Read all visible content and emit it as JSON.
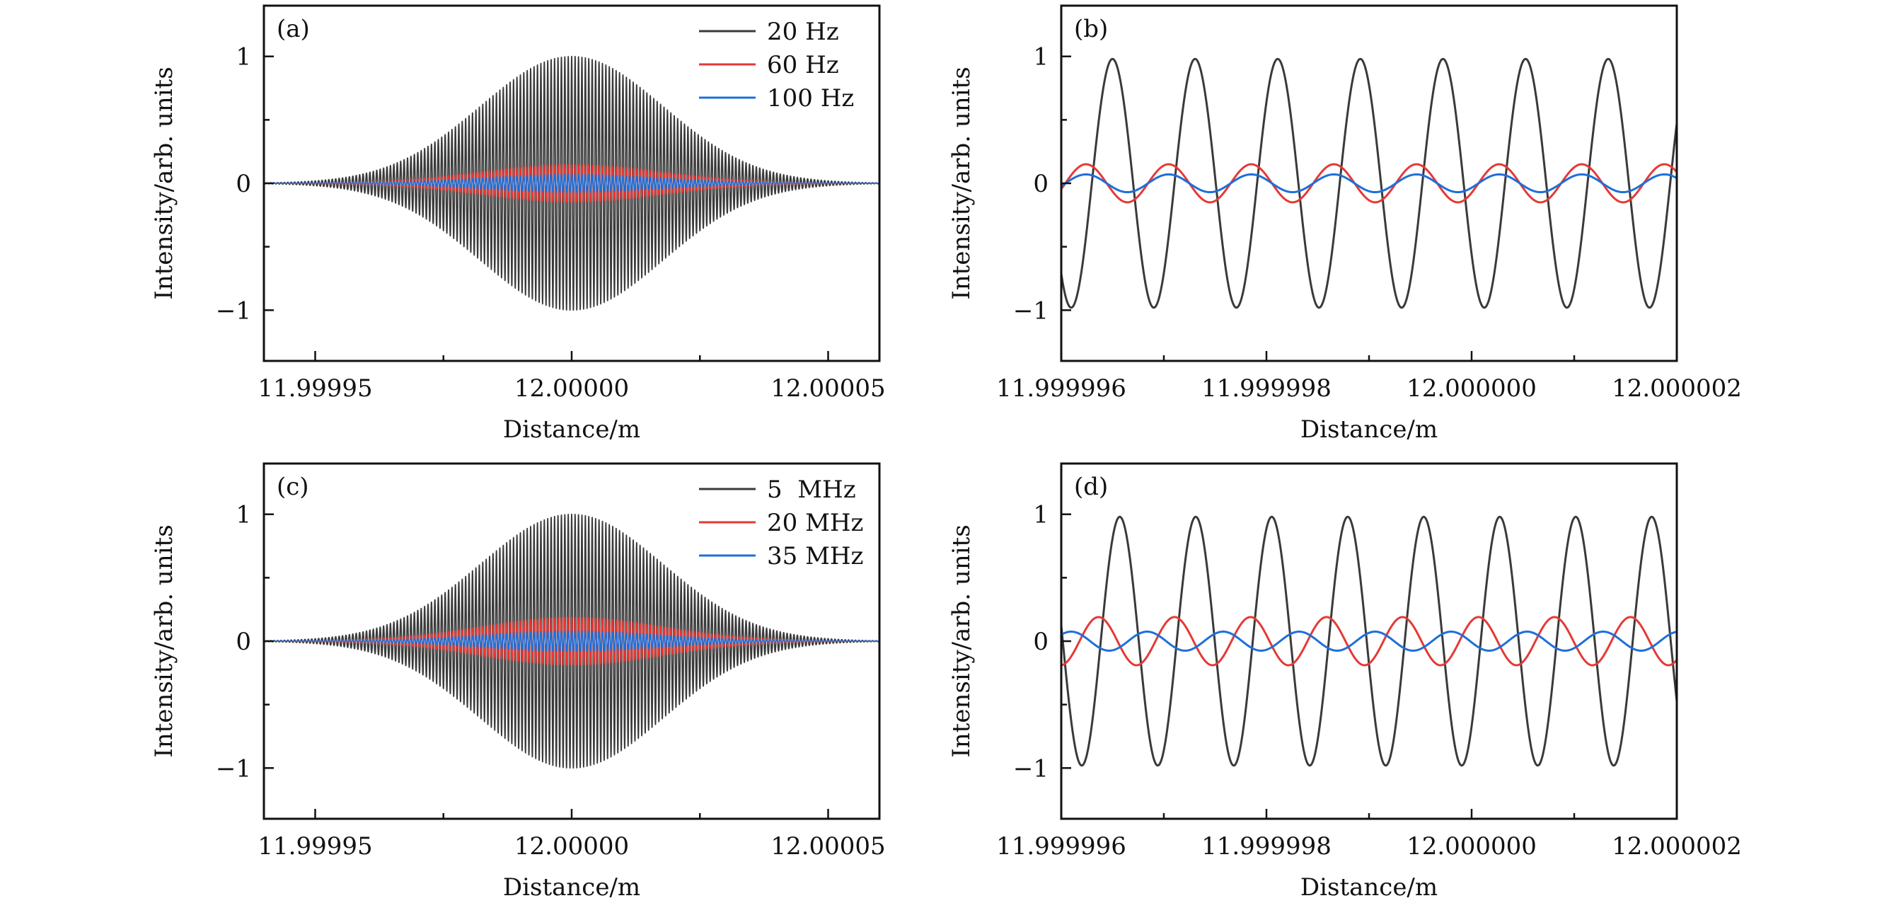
{
  "colors": {
    "s1": "#3a3a3a",
    "s2": "#e53935",
    "s3": "#1e6fd9",
    "axis": "#111111"
  },
  "chart_data": [
    {
      "id": "a",
      "type": "line",
      "panel_label": "(a)",
      "xlabel": "Distance/m",
      "ylabel": "Intensity/arb. units",
      "xlim": [
        11.99994,
        12.00006
      ],
      "ylim": [
        -1.4,
        1.4
      ],
      "xticks": [
        11.99995,
        12.0,
        12.00005
      ],
      "xtick_labels": [
        "11.99995",
        "12.00000",
        "12.00005"
      ],
      "yticks": [
        -1,
        0,
        1
      ],
      "ytick_labels": [
        "−1",
        "0",
        "1"
      ],
      "legend_position": "top-right",
      "series": [
        {
          "name": "20 Hz",
          "color": "#3a3a3a",
          "amplitude": 1.0,
          "cycles_in_view": 180
        },
        {
          "name": "60 Hz",
          "color": "#e53935",
          "amplitude": 0.15,
          "cycles_in_view": 180
        },
        {
          "name": "100 Hz",
          "color": "#1e6fd9",
          "amplitude": 0.07,
          "cycles_in_view": 180
        }
      ],
      "envelope": "gaussian",
      "center": 12.0
    },
    {
      "id": "b",
      "type": "line",
      "panel_label": "(b)",
      "xlabel": "Distance/m",
      "ylabel": "Intensity/arb. units",
      "xlim": [
        11.999996,
        12.000002
      ],
      "ylim": [
        -1.4,
        1.4
      ],
      "xticks": [
        11.999996,
        11.999998,
        12.0,
        12.000002
      ],
      "xtick_labels": [
        "11.999996",
        "11.999998",
        "12.000000",
        "12.000002"
      ],
      "yticks": [
        -1,
        0,
        1
      ],
      "ytick_labels": [
        "−1",
        "0",
        "1"
      ],
      "series": [
        {
          "name": "20 Hz",
          "color": "#3a3a3a",
          "amplitude": 0.98,
          "cycles_in_view": 7.45,
          "phase": 0.62
        },
        {
          "name": "60 Hz",
          "color": "#e53935",
          "amplitude": 0.15,
          "cycles_in_view": 7.45,
          "phase": 0.3
        },
        {
          "name": "100 Hz",
          "color": "#1e6fd9",
          "amplitude": 0.07,
          "cycles_in_view": 7.45,
          "phase": 0.3
        }
      ]
    },
    {
      "id": "c",
      "type": "line",
      "panel_label": "(c)",
      "xlabel": "Distance/m",
      "ylabel": "Intensity/arb. units",
      "xlim": [
        11.99994,
        12.00006
      ],
      "ylim": [
        -1.4,
        1.4
      ],
      "xticks": [
        11.99995,
        12.0,
        12.00005
      ],
      "xtick_labels": [
        "11.99995",
        "12.00000",
        "12.00005"
      ],
      "yticks": [
        -1,
        0,
        1
      ],
      "ytick_labels": [
        "−1",
        "0",
        "1"
      ],
      "legend_position": "top-right",
      "series": [
        {
          "name": "5  MHz",
          "color": "#3a3a3a",
          "amplitude": 1.0,
          "cycles_in_view": 180
        },
        {
          "name": "20 MHz",
          "color": "#e53935",
          "amplitude": 0.19,
          "cycles_in_view": 180
        },
        {
          "name": "35 MHz",
          "color": "#1e6fd9",
          "amplitude": 0.08,
          "cycles_in_view": 180
        }
      ],
      "envelope": "gaussian",
      "center": 12.0
    },
    {
      "id": "d",
      "type": "line",
      "panel_label": "(d)",
      "xlabel": "Distance/m",
      "ylabel": "Intensity/arb. units",
      "xlim": [
        11.999996,
        12.000002
      ],
      "ylim": [
        -1.4,
        1.4
      ],
      "xticks": [
        11.999996,
        11.999998,
        12.0,
        12.000002
      ],
      "xtick_labels": [
        "11.999996",
        "11.999998",
        "12.000000",
        "12.000002"
      ],
      "yticks": [
        -1,
        0,
        1
      ],
      "ytick_labels": [
        "−1",
        "0",
        "1"
      ],
      "series": [
        {
          "name": "5  MHz",
          "color": "#3a3a3a",
          "amplitude": 0.98,
          "cycles_in_view": 8.1,
          "phase": 0.77
        },
        {
          "name": "20 MHz",
          "color": "#e53935",
          "amplitude": 0.19,
          "cycles_in_view": 8.1,
          "phase": 0.49
        },
        {
          "name": "35 MHz",
          "color": "#1e6fd9",
          "amplitude": 0.075,
          "cycles_in_view": 8.1,
          "phase": 0.13
        }
      ]
    }
  ]
}
